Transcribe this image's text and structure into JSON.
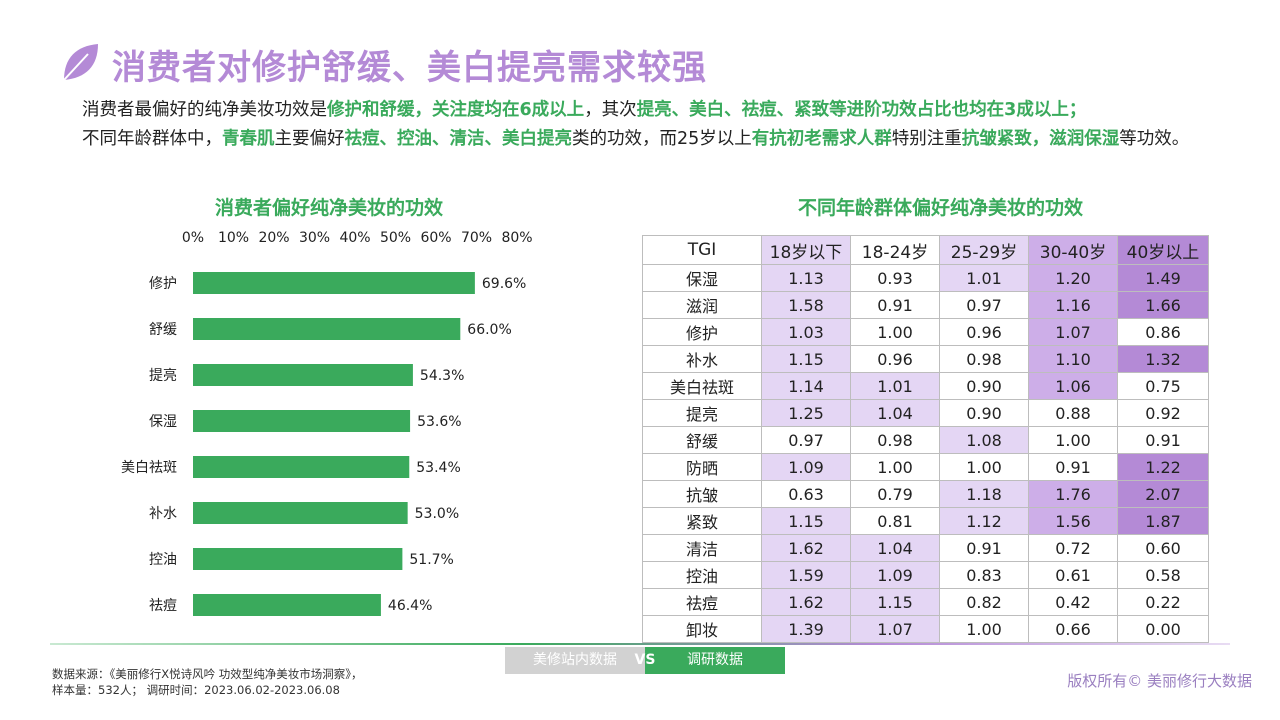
{
  "colors": {
    "title": "#b48ad6",
    "accent": "#3aaa5c",
    "bar": "#3aaa5c",
    "purple": "#b48ad6",
    "heat_dark": "#b48ad6",
    "heat_mid": "#cdaee8",
    "heat_light": "#e4d6f4"
  },
  "header": {
    "icon": "leaf-icon",
    "title": "消费者对修护舒缓、美白提亮需求较强"
  },
  "intro": {
    "p1": "消费者最偏好的纯净美妆功效是",
    "h1": "修护和舒缓，关注度均在6成以上",
    "p2": "，其次",
    "h2": "提亮、美白、祛痘、紧致等进阶功效占比也均在3成以上；",
    "p3": "不同年龄群体中，",
    "h3": "青春肌",
    "p4": "主要偏好",
    "h4": "祛痘、控油、清洁、美白提亮",
    "p5": "类的功效，而25岁以上",
    "h5": "有抗初老需求人群",
    "p6": "特别注重",
    "h6": "抗皱紧致，滋润保湿",
    "p7": "等功效。"
  },
  "left_chart_title": "消费者偏好纯净美妆的功效",
  "right_chart_title": "不同年龄群体偏好纯净美妆的功效",
  "chart_data": [
    {
      "type": "bar",
      "orientation": "horizontal",
      "title": "消费者偏好纯净美妆的功效",
      "categories": [
        "修护",
        "舒缓",
        "提亮",
        "保湿",
        "美白祛斑",
        "补水",
        "控油",
        "祛痘"
      ],
      "values": [
        69.6,
        66.0,
        54.3,
        53.6,
        53.4,
        53.0,
        51.7,
        46.4
      ],
      "value_labels": [
        "69.6%",
        "66.0%",
        "54.3%",
        "53.6%",
        "53.4%",
        "53.0%",
        "51.7%",
        "46.4%"
      ],
      "xlim": [
        0,
        80
      ],
      "xticks": [
        "0%",
        "10%",
        "20%",
        "30%",
        "40%",
        "50%",
        "60%",
        "70%",
        "80%"
      ],
      "axis_position": "top",
      "grid": false,
      "legend": "none"
    },
    {
      "type": "table",
      "title": "不同年龄群体偏好纯净美妆的功效",
      "corner_label": "TGI",
      "columns": [
        "18岁以下",
        "18-24岁",
        "25-29岁",
        "30-40岁",
        "40岁以上"
      ],
      "rows": [
        {
          "label": "保湿",
          "values": [
            "1.13",
            "0.93",
            "1.01",
            "1.20",
            "1.49"
          ]
        },
        {
          "label": "滋润",
          "values": [
            "1.58",
            "0.91",
            "0.97",
            "1.16",
            "1.66"
          ]
        },
        {
          "label": "修护",
          "values": [
            "1.03",
            "1.00",
            "0.96",
            "1.07",
            "0.86"
          ]
        },
        {
          "label": "补水",
          "values": [
            "1.15",
            "0.96",
            "0.98",
            "1.10",
            "1.32"
          ]
        },
        {
          "label": "美白祛斑",
          "values": [
            "1.14",
            "1.01",
            "0.90",
            "1.06",
            "0.75"
          ]
        },
        {
          "label": "提亮",
          "values": [
            "1.25",
            "1.04",
            "0.90",
            "0.88",
            "0.92"
          ]
        },
        {
          "label": "舒缓",
          "values": [
            "0.97",
            "0.98",
            "1.08",
            "1.00",
            "0.91"
          ]
        },
        {
          "label": "防晒",
          "values": [
            "1.09",
            "1.00",
            "1.00",
            "0.91",
            "1.22"
          ]
        },
        {
          "label": "抗皱",
          "values": [
            "0.63",
            "0.79",
            "1.18",
            "1.76",
            "2.07"
          ]
        },
        {
          "label": "紧致",
          "values": [
            "1.15",
            "0.81",
            "1.12",
            "1.56",
            "1.87"
          ]
        },
        {
          "label": "清洁",
          "values": [
            "1.62",
            "1.04",
            "0.91",
            "0.72",
            "0.60"
          ]
        },
        {
          "label": "控油",
          "values": [
            "1.59",
            "1.09",
            "0.83",
            "0.61",
            "0.58"
          ]
        },
        {
          "label": "祛痘",
          "values": [
            "1.62",
            "1.15",
            "0.82",
            "0.42",
            "0.22"
          ]
        },
        {
          "label": "卸妆",
          "values": [
            "1.39",
            "1.07",
            "1.00",
            "0.66",
            "0.00"
          ]
        }
      ],
      "header_shading": [
        "light",
        "none",
        "light",
        "mid",
        "dark"
      ],
      "cell_shading": [
        [
          "light",
          "none",
          "light",
          "mid",
          "dark"
        ],
        [
          "light",
          "none",
          "none",
          "mid",
          "dark"
        ],
        [
          "light",
          "none",
          "none",
          "mid",
          "none"
        ],
        [
          "light",
          "none",
          "none",
          "mid",
          "dark"
        ],
        [
          "light",
          "light",
          "none",
          "mid",
          "none"
        ],
        [
          "light",
          "light",
          "none",
          "none",
          "none"
        ],
        [
          "none",
          "none",
          "light",
          "none",
          "none"
        ],
        [
          "light",
          "none",
          "none",
          "none",
          "dark"
        ],
        [
          "none",
          "none",
          "light",
          "mid",
          "dark"
        ],
        [
          "light",
          "none",
          "light",
          "mid",
          "dark"
        ],
        [
          "light",
          "light",
          "none",
          "none",
          "none"
        ],
        [
          "light",
          "light",
          "none",
          "none",
          "none"
        ],
        [
          "light",
          "light",
          "none",
          "none",
          "none"
        ],
        [
          "light",
          "light",
          "none",
          "none",
          "none"
        ]
      ]
    }
  ],
  "footer": {
    "source_line1": "数据来源：《美丽修行X悦诗风吟 功效型纯净美妆市场洞察》，",
    "source_line2": "样本量：532人；  调研时间：2023.06.02-2023.06.08",
    "tag_internal": "美修站内数据",
    "tag_vs": "VS",
    "tag_survey": "调研数据",
    "copyright": "版权所有© 美丽修行大数据"
  }
}
